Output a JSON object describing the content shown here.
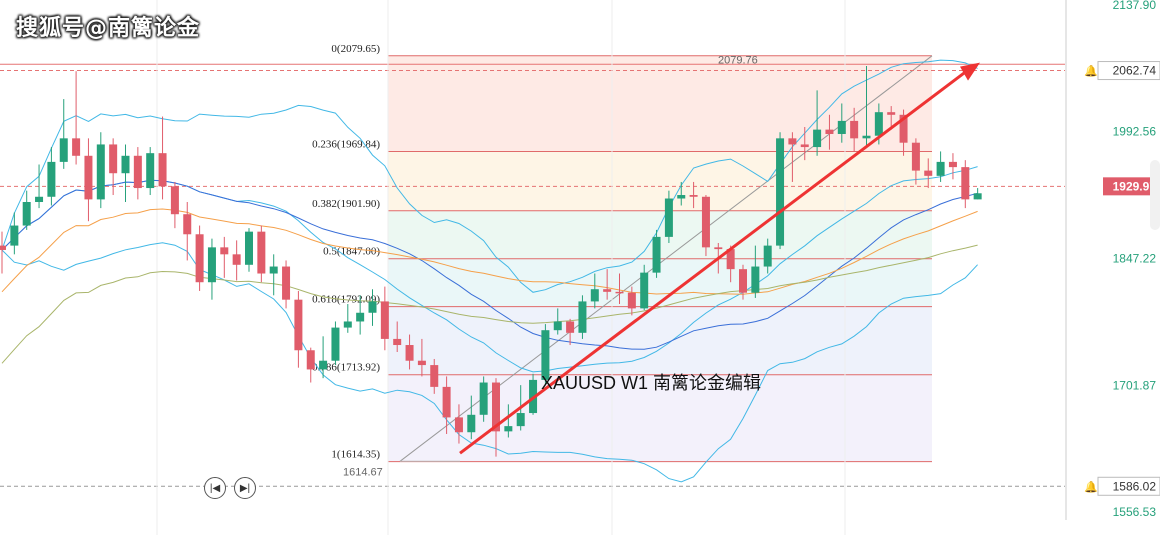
{
  "watermark": "搜狐号@南篱论金",
  "annotation": {
    "symbol": "XAUUSD",
    "timeframe": "W1",
    "author": "南篱论金编辑"
  },
  "colors": {
    "bull": "#26a17b",
    "bear": "#e05c6a",
    "trend": "#ee3333",
    "ma_blue": "#3a6fd8",
    "ma_orange": "#f5a04a",
    "ma_olive": "#a9b56b",
    "boll": "#42b8e6"
  },
  "chart_data": {
    "type": "candlestick",
    "ylim": [
      1556.53,
      2137.9
    ],
    "y_axis_ticks": [
      {
        "value": 2137.9,
        "label": "2137.90"
      },
      {
        "value": 2062.74,
        "label": "2062.74",
        "boxed": true
      },
      {
        "value": 1992.56,
        "label": "1992.56"
      },
      {
        "value": 1929.97,
        "label": "1929.97",
        "current": true
      },
      {
        "value": 1847.22,
        "label": "1847.22"
      },
      {
        "value": 1701.87,
        "label": "1701.87"
      },
      {
        "value": 1586.02,
        "label": "1586.02",
        "boxed": true
      },
      {
        "value": 1556.53,
        "label": "1556.53"
      }
    ],
    "fibonacci": {
      "high": 2079.65,
      "low": 1614.35,
      "levels": [
        {
          "label": "0(2079.65)",
          "value": 2079.65
        },
        {
          "label": "0.236(1969.84)",
          "value": 1969.84
        },
        {
          "label": "0.382(1901.90)",
          "value": 1901.9
        },
        {
          "label": "0.5(1847.00)",
          "value": 1847.0
        },
        {
          "label": "0.618(1792.09)",
          "value": 1792.09
        },
        {
          "label": "0.786(1713.92)",
          "value": 1713.92
        },
        {
          "label": "1(1614.35)",
          "value": 1614.35
        }
      ]
    },
    "annotations": [
      {
        "label": "2079.76",
        "value": 2079.76
      },
      {
        "label": "1614.67",
        "value": 1614.67
      }
    ],
    "candles": [
      [
        1862,
        1857,
        1878,
        1830
      ],
      [
        1862,
        1885,
        1900,
        1852
      ],
      [
        1885,
        1912,
        1925,
        1880
      ],
      [
        1912,
        1918,
        1955,
        1905
      ],
      [
        1918,
        1958,
        1975,
        1908
      ],
      [
        1958,
        1985,
        2030,
        1950
      ],
      [
        1985,
        1965,
        2062,
        1955
      ],
      [
        1965,
        1915,
        1985,
        1890
      ],
      [
        1915,
        1978,
        1992,
        1905
      ],
      [
        1978,
        1945,
        1985,
        1920
      ],
      [
        1945,
        1965,
        1978,
        1912
      ],
      [
        1965,
        1928,
        1975,
        1915
      ],
      [
        1928,
        1968,
        1975,
        1920
      ],
      [
        1968,
        1930,
        2010,
        1915
      ],
      [
        1930,
        1898,
        1935,
        1882
      ],
      [
        1898,
        1875,
        1912,
        1845
      ],
      [
        1875,
        1820,
        1885,
        1810
      ],
      [
        1820,
        1860,
        1870,
        1800
      ],
      [
        1860,
        1852,
        1872,
        1825
      ],
      [
        1852,
        1840,
        1868,
        1822
      ],
      [
        1840,
        1878,
        1882,
        1832
      ],
      [
        1878,
        1830,
        1885,
        1820
      ],
      [
        1830,
        1838,
        1852,
        1805
      ],
      [
        1838,
        1800,
        1845,
        1790
      ],
      [
        1800,
        1742,
        1810,
        1722
      ],
      [
        1742,
        1720,
        1745,
        1705
      ],
      [
        1720,
        1730,
        1758,
        1710
      ],
      [
        1730,
        1768,
        1775,
        1725
      ],
      [
        1768,
        1775,
        1795,
        1762
      ],
      [
        1775,
        1785,
        1805,
        1760
      ],
      [
        1785,
        1798,
        1812,
        1770
      ],
      [
        1798,
        1755,
        1815,
        1742
      ],
      [
        1755,
        1748,
        1775,
        1740
      ],
      [
        1748,
        1730,
        1760,
        1720
      ],
      [
        1730,
        1725,
        1755,
        1712
      ],
      [
        1725,
        1700,
        1732,
        1692
      ],
      [
        1700,
        1665,
        1712,
        1646
      ],
      [
        1665,
        1648,
        1680,
        1635
      ],
      [
        1648,
        1668,
        1690,
        1640
      ],
      [
        1668,
        1705,
        1712,
        1660
      ],
      [
        1705,
        1649,
        1710,
        1620
      ],
      [
        1649,
        1655,
        1680,
        1642
      ],
      [
        1655,
        1670,
        1702,
        1650
      ],
      [
        1670,
        1708,
        1715,
        1668
      ],
      [
        1708,
        1765,
        1772,
        1702
      ],
      [
        1765,
        1775,
        1790,
        1760
      ],
      [
        1775,
        1762,
        1778,
        1748
      ],
      [
        1762,
        1798,
        1805,
        1755
      ],
      [
        1798,
        1812,
        1830,
        1790
      ],
      [
        1812,
        1809,
        1835,
        1800
      ],
      [
        1809,
        1808,
        1830,
        1795
      ],
      [
        1808,
        1790,
        1815,
        1782
      ],
      [
        1790,
        1831,
        1840,
        1788
      ],
      [
        1831,
        1872,
        1880,
        1825
      ],
      [
        1872,
        1916,
        1925,
        1865
      ],
      [
        1916,
        1920,
        1935,
        1908
      ],
      [
        1920,
        1918,
        1935,
        1905
      ],
      [
        1918,
        1860,
        1920,
        1850
      ],
      [
        1860,
        1858,
        1865,
        1830
      ],
      [
        1858,
        1835,
        1862,
        1820
      ],
      [
        1835,
        1808,
        1840,
        1800
      ],
      [
        1808,
        1838,
        1862,
        1802
      ],
      [
        1838,
        1862,
        1870,
        1830
      ],
      [
        1862,
        1985,
        1992,
        1858
      ],
      [
        1985,
        1978,
        1992,
        1935
      ],
      [
        1978,
        1975,
        1998,
        1960
      ],
      [
        1975,
        1995,
        2040,
        1965
      ],
      [
        1995,
        1990,
        2012,
        1972
      ],
      [
        1990,
        2005,
        2025,
        1980
      ],
      [
        2005,
        1985,
        2020,
        1970
      ],
      [
        1985,
        1988,
        2068,
        1975
      ],
      [
        1988,
        2015,
        2025,
        1978
      ],
      [
        2015,
        2012,
        2022,
        1995
      ],
      [
        2012,
        1980,
        2018,
        1965
      ],
      [
        1980,
        1948,
        1985,
        1932
      ],
      [
        1948,
        1942,
        1962,
        1928
      ],
      [
        1942,
        1958,
        1970,
        1935
      ],
      [
        1958,
        1952,
        1968,
        1938
      ],
      [
        1952,
        1915,
        1960,
        1905
      ],
      [
        1915,
        1922,
        1928,
        1915
      ]
    ]
  }
}
